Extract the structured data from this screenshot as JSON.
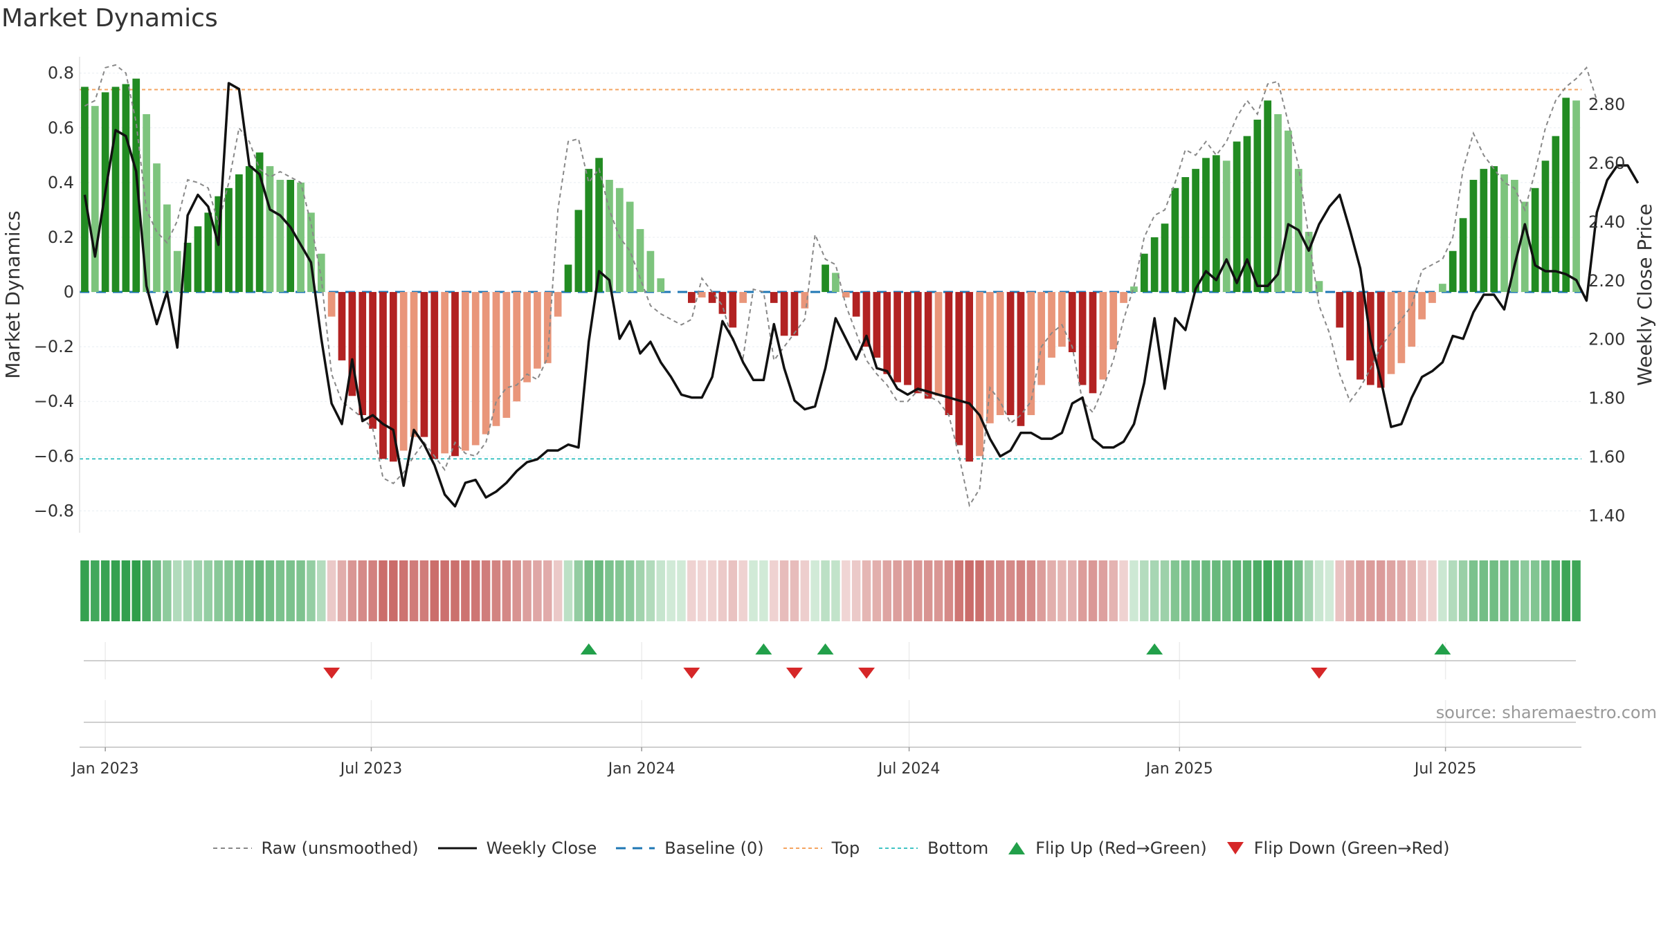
{
  "chart_data": {
    "type": "bar",
    "title": "Market Dynamics",
    "ylabel": "Market Dynamics",
    "y2label": "Weekly Close Price",
    "ylim": [
      -0.88,
      0.86
    ],
    "y2lim": [
      1.34,
      2.96
    ],
    "yticks": [
      "0.8",
      "0.6",
      "0.4",
      "0.2",
      "0",
      "−0.2",
      "−0.4",
      "−0.6",
      "−0.8"
    ],
    "yticks_values": [
      0.8,
      0.6,
      0.4,
      0.2,
      0,
      -0.2,
      -0.4,
      -0.6,
      -0.8
    ],
    "y2ticks": [
      "2.80",
      "2.60",
      "2.40",
      "2.20",
      "2.00",
      "1.80",
      "1.60",
      "1.40"
    ],
    "y2ticks_values": [
      2.8,
      2.6,
      2.4,
      2.2,
      2.0,
      1.8,
      1.6,
      1.4
    ],
    "xticks": [
      "Jan 2023",
      "Jul 2023",
      "Jan 2024",
      "Jul 2024",
      "Jan 2025",
      "Jul 2025"
    ],
    "xticks_values": [
      "2023-01-01",
      "2023-07-01",
      "2024-01-01",
      "2024-07-01",
      "2025-01-01",
      "2025-07-01"
    ],
    "first_week": "2022-12-18",
    "top_line": 0.74,
    "bottom_line": -0.61,
    "grid": true,
    "legend_position": "bottom",
    "legend": [
      "Raw (unsmoothed)",
      "Weekly Close",
      "Baseline (0)",
      "Top",
      "Bottom",
      "Flip Up (Red→Green)",
      "Flip Down (Green→Red)"
    ],
    "series": [
      {
        "name": "Market Dynamics",
        "type": "bar",
        "values": [
          0.75,
          0.68,
          0.73,
          0.75,
          0.76,
          0.78,
          0.65,
          0.47,
          0.32,
          0.15,
          0.18,
          0.24,
          0.29,
          0.35,
          0.38,
          0.43,
          0.46,
          0.51,
          0.46,
          0.41,
          0.41,
          0.4,
          0.29,
          0.14,
          -0.09,
          -0.25,
          -0.38,
          -0.45,
          -0.5,
          -0.61,
          -0.62,
          -0.58,
          -0.53,
          -0.53,
          -0.61,
          -0.59,
          -0.6,
          -0.58,
          -0.56,
          -0.52,
          -0.49,
          -0.46,
          -0.4,
          -0.33,
          -0.28,
          -0.26,
          -0.09,
          0.1,
          0.3,
          0.45,
          0.49,
          0.41,
          0.38,
          0.33,
          0.23,
          0.15,
          0.05,
          0.0,
          0.0,
          -0.04,
          -0.02,
          -0.04,
          -0.08,
          -0.13,
          -0.04,
          0.0,
          0.0,
          -0.04,
          -0.16,
          -0.16,
          -0.06,
          0.0,
          0.1,
          0.07,
          -0.02,
          -0.09,
          -0.2,
          -0.24,
          -0.3,
          -0.33,
          -0.34,
          -0.37,
          -0.39,
          -0.38,
          -0.45,
          -0.56,
          -0.62,
          -0.6,
          -0.48,
          -0.45,
          -0.45,
          -0.49,
          -0.45,
          -0.34,
          -0.24,
          -0.2,
          -0.22,
          -0.34,
          -0.37,
          -0.32,
          -0.21,
          -0.04,
          0.02,
          0.14,
          0.2,
          0.25,
          0.38,
          0.42,
          0.45,
          0.49,
          0.5,
          0.48,
          0.55,
          0.57,
          0.63,
          0.7,
          0.65,
          0.59,
          0.45,
          0.22,
          0.04,
          0.0,
          -0.13,
          -0.25,
          -0.32,
          -0.34,
          -0.35,
          -0.3,
          -0.26,
          -0.2,
          -0.1,
          -0.04,
          0.03,
          0.15,
          0.27,
          0.41,
          0.45,
          0.46,
          0.43,
          0.41,
          0.33,
          0.38,
          0.48,
          0.57,
          0.71,
          0.7
        ]
      },
      {
        "name": "Weekly Close",
        "type": "line",
        "values": [
          2.49,
          2.28,
          2.5,
          2.71,
          2.69,
          2.57,
          2.18,
          2.05,
          2.16,
          1.97,
          2.42,
          2.49,
          2.45,
          2.32,
          2.87,
          2.85,
          2.59,
          2.56,
          2.44,
          2.42,
          2.38,
          2.32,
          2.26,
          2.0,
          1.78,
          1.71,
          1.93,
          1.72,
          1.74,
          1.71,
          1.69,
          1.5,
          1.69,
          1.64,
          1.57,
          1.47,
          1.43,
          1.51,
          1.52,
          1.46,
          1.48,
          1.51,
          1.55,
          1.58,
          1.59,
          1.62,
          1.62,
          1.64,
          1.63,
          1.99,
          2.23,
          2.2,
          2.0,
          2.06,
          1.95,
          1.99,
          1.92,
          1.87,
          1.81,
          1.8,
          1.8,
          1.87,
          2.06,
          2.0,
          1.92,
          1.86,
          1.86,
          2.05,
          1.9,
          1.79,
          1.76,
          1.77,
          1.9,
          2.07,
          2.0,
          1.93,
          2.01,
          1.9,
          1.89,
          1.83,
          1.81,
          1.83,
          1.82,
          1.81,
          1.8,
          1.79,
          1.78,
          1.74,
          1.66,
          1.6,
          1.62,
          1.68,
          1.68,
          1.66,
          1.66,
          1.68,
          1.78,
          1.8,
          1.66,
          1.63,
          1.63,
          1.65,
          1.71,
          1.85,
          2.07,
          1.83,
          2.07,
          2.03,
          2.17,
          2.23,
          2.2,
          2.27,
          2.19,
          2.27,
          2.18,
          2.18,
          2.22,
          2.39,
          2.37,
          2.3,
          2.39,
          2.45,
          2.49,
          2.37,
          2.24,
          2.0,
          1.86,
          1.7,
          1.71,
          1.8,
          1.87,
          1.89,
          1.92,
          2.01,
          2.0,
          2.09,
          2.15,
          2.15,
          2.1,
          2.25,
          2.39,
          2.25,
          2.23,
          2.23,
          2.22,
          2.2,
          2.13,
          2.43,
          2.54,
          2.59,
          2.59,
          2.53
        ]
      },
      {
        "name": "Raw (unsmoothed)",
        "type": "line",
        "values": [
          0.68,
          0.7,
          0.82,
          0.83,
          0.8,
          0.62,
          0.3,
          0.22,
          0.18,
          0.26,
          0.41,
          0.4,
          0.38,
          0.25,
          0.4,
          0.6,
          0.55,
          0.45,
          0.42,
          0.44,
          0.42,
          0.4,
          0.25,
          0.05,
          -0.3,
          -0.4,
          -0.43,
          -0.46,
          -0.5,
          -0.68,
          -0.7,
          -0.66,
          -0.6,
          -0.55,
          -0.6,
          -0.65,
          -0.55,
          -0.59,
          -0.6,
          -0.55,
          -0.4,
          -0.35,
          -0.34,
          -0.3,
          -0.32,
          -0.24,
          0.3,
          0.55,
          0.56,
          0.4,
          0.45,
          0.3,
          0.2,
          0.15,
          0.05,
          -0.05,
          -0.08,
          -0.1,
          -0.12,
          -0.1,
          0.05,
          0.0,
          -0.05,
          -0.18,
          -0.24,
          0.01,
          0.0,
          -0.25,
          -0.2,
          -0.15,
          -0.1,
          0.21,
          0.12,
          0.1,
          -0.05,
          -0.15,
          -0.25,
          -0.3,
          -0.34,
          -0.4,
          -0.4,
          -0.36,
          -0.38,
          -0.4,
          -0.45,
          -0.6,
          -0.78,
          -0.72,
          -0.35,
          -0.4,
          -0.48,
          -0.45,
          -0.4,
          -0.2,
          -0.15,
          -0.12,
          -0.2,
          -0.4,
          -0.44,
          -0.35,
          -0.25,
          -0.1,
          0.02,
          0.2,
          0.28,
          0.3,
          0.4,
          0.52,
          0.5,
          0.55,
          0.5,
          0.55,
          0.64,
          0.7,
          0.65,
          0.76,
          0.77,
          0.62,
          0.46,
          0.2,
          -0.05,
          -0.15,
          -0.3,
          -0.4,
          -0.35,
          -0.28,
          -0.2,
          -0.15,
          -0.1,
          -0.05,
          0.08,
          0.1,
          0.12,
          0.2,
          0.45,
          0.58,
          0.5,
          0.45,
          0.4,
          0.38,
          0.3,
          0.44,
          0.6,
          0.7,
          0.75,
          0.78,
          0.82,
          0.7
        ]
      },
      {
        "name": "Flip Up (Red→Green)",
        "type": "scatter",
        "x": [
          "2023-11-26",
          "2024-03-24",
          "2024-05-05",
          "2024-12-15",
          "2025-06-29"
        ]
      },
      {
        "name": "Flip Down (Green→Red)",
        "type": "scatter",
        "x": [
          "2023-06-04",
          "2024-02-04",
          "2024-04-14",
          "2024-06-02",
          "2025-04-06"
        ]
      }
    ],
    "colors": {
      "strong_green": "#228b22",
      "light_green": "#7dc47d",
      "strong_red": "#b22222",
      "light_red": "#e9967a",
      "raw": "#888888",
      "close": "#111111",
      "baseline": "#1f77b4",
      "top": "#f4a460",
      "bottom": "#40c4c4",
      "flip_up": "#22a04a",
      "flip_down": "#d62728"
    }
  },
  "title": "Market Dynamics",
  "source": "source: sharemaestro.com",
  "legend": {
    "raw": "Raw (unsmoothed)",
    "close": "Weekly Close",
    "baseline": "Baseline (0)",
    "top": "Top",
    "bottom": "Bottom",
    "flip_up": "Flip Up (Red→Green)",
    "flip_down": "Flip Down (Green→Red)"
  }
}
